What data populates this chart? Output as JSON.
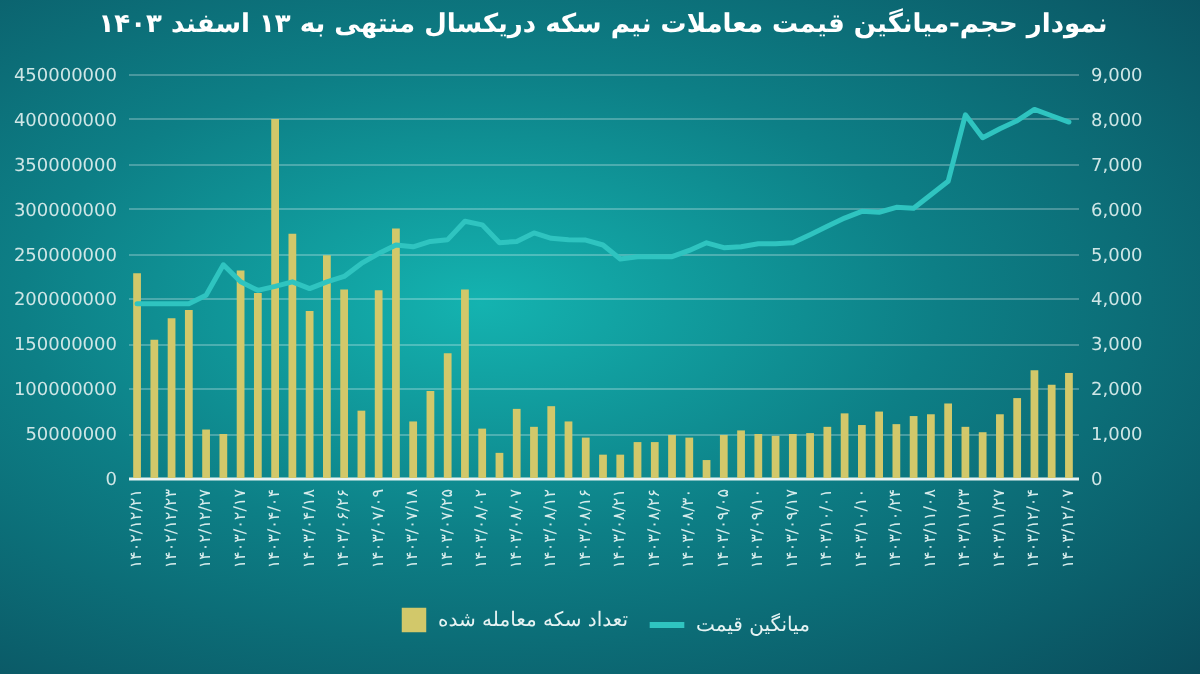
{
  "chart_data": {
    "type": "bar",
    "title": "نمودار حجم-میانگین قیمت معاملات نیم سکه دریکسال منتهی به ۱۳ اسفند ۱۴۰۳",
    "categories": [
      "۱۴۰۲/۱۲/۲۱",
      null,
      "۱۴۰۲/۱۲/۲۳",
      null,
      "۱۴۰۲/۱۲/۲۷",
      null,
      "۱۴۰۳/۰۲/۱۷",
      null,
      "۱۴۰۳/۰۴/۰۴",
      null,
      "۱۴۰۳/۰۴/۱۸",
      null,
      "۱۴۰۳/۰۶/۲۶",
      null,
      "۱۴۰۳/۰۷/۰۹",
      null,
      "۱۴۰۳/۰۷/۱۸",
      null,
      "۱۴۰۳/۰۷/۲۵",
      null,
      "۱۴۰۳/۰۸/۰۲",
      null,
      "۱۴۰۳/۰۸/۰۷",
      null,
      "۱۴۰۳/۰۸/۱۲",
      null,
      "۱۴۰۳/۰۸/۱۶",
      null,
      "۱۴۰۳/۰۸/۲۱",
      null,
      "۱۴۰۳/۰۸/۲۶",
      null,
      "۱۴۰۳/۰۸/۳۰",
      null,
      "۱۴۰۳/۰۹/۰۵",
      null,
      "۱۴۰۳/۰۹/۱۰",
      null,
      "۱۴۰۳/۰۹/۱۷",
      null,
      "۱۴۰۳/۱۰/۰۱",
      null,
      "۱۴۰۳/۱۰/۱۰",
      null,
      "۱۴۰۳/۱۰/۲۴",
      null,
      "۱۴۰۳/۱۱/۰۸",
      null,
      "۱۴۰۳/۱۱/۲۳",
      null,
      "۱۴۰۳/۱۱/۲۷",
      null,
      "۱۴۰۳/۱۲/۰۴",
      null,
      "۱۴۰۳/۱۲/۰۷"
    ],
    "series": [
      {
        "name": "تعداد سکه معامله شده",
        "color": "#d2c86a",
        "values": [
          228000000,
          154000000,
          178000000,
          187000000,
          54000000,
          49000000,
          231000000,
          206000000,
          400000000,
          272000000,
          186000000,
          248000000,
          210000000,
          75000000,
          209000000,
          278000000,
          63000000,
          97000000,
          139000000,
          210000000,
          55000000,
          28000000,
          77000000,
          57000000,
          80000000,
          63000000,
          45000000,
          26000000,
          26000000,
          40000000,
          40000000,
          48000000,
          45000000,
          20000000,
          48000000,
          53000000,
          49000000,
          47000000,
          49000000,
          50000000,
          57000000,
          72000000,
          59000000,
          74000000,
          60000000,
          69000000,
          71000000,
          83000000,
          57000000,
          51000000,
          71000000,
          89000000,
          120000000,
          104000000,
          117000000
        ]
      },
      {
        "name": "میانگین قیمت",
        "type": "line",
        "axis": "y2",
        "color": "#2fc4c0",
        "values": [
          3880,
          3880,
          3880,
          3880,
          4070,
          4750,
          4370,
          4180,
          4270,
          4370,
          4220,
          4370,
          4490,
          4780,
          5000,
          5190,
          5150,
          5270,
          5310,
          5720,
          5640,
          5240,
          5270,
          5460,
          5340,
          5310,
          5300,
          5190,
          4880,
          4930,
          4930,
          4930,
          5070,
          5240,
          5130,
          5150,
          5220,
          5220,
          5240,
          5420,
          5610,
          5790,
          5940,
          5920,
          6030,
          6010,
          6310,
          6610,
          8090,
          7580,
          7780,
          7960,
          8210,
          8070,
          7930
        ]
      }
    ],
    "ylim": [
      0,
      450000000
    ],
    "yticks": [
      0,
      50000000,
      100000000,
      150000000,
      200000000,
      250000000,
      300000000,
      350000000,
      400000000,
      450000000
    ],
    "y2lim": [
      0,
      9000
    ],
    "y2ticks": [
      0,
      {
        "value": 1000,
        "label": "1,000"
      },
      {
        "value": 2000,
        "label": "2,000"
      },
      {
        "value": 3000,
        "label": "3,000"
      },
      {
        "value": 4000,
        "label": "4,000"
      },
      {
        "value": 5000,
        "label": "5,000"
      },
      {
        "value": 6000,
        "label": "6,000"
      },
      {
        "value": 7000,
        "label": "7,000"
      },
      {
        "value": 8000,
        "label": "8,000"
      },
      {
        "value": 9000,
        "label": "9,000"
      }
    ],
    "grid": "y",
    "legend": "bottom"
  }
}
